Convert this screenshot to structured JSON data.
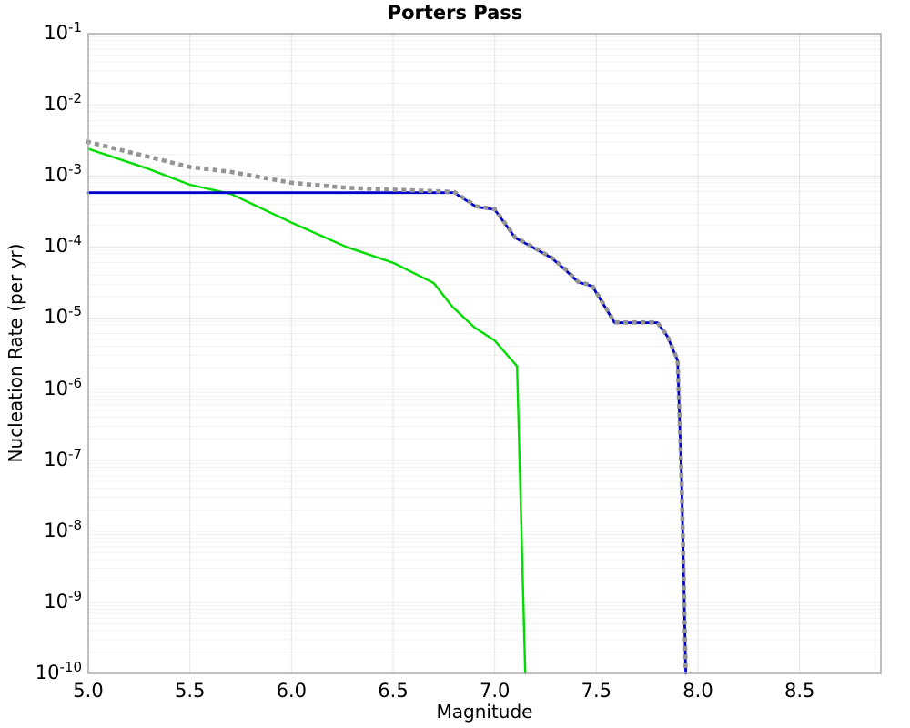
{
  "title": "Porters Pass",
  "x_axis": {
    "label": "Magnitude",
    "tick_labels": [
      "5.0",
      "5.5",
      "6.0",
      "6.5",
      "7.0",
      "7.5",
      "8.0",
      "8.5"
    ],
    "tick_values": [
      5.0,
      5.5,
      6.0,
      6.5,
      7.0,
      7.5,
      8.0,
      8.5
    ]
  },
  "y_axis": {
    "label": "Nucleation Rate (per yr)",
    "tick_base": "10",
    "tick_exponents": [
      "-1",
      "-2",
      "-3",
      "-4",
      "-5",
      "-6",
      "-7",
      "-8",
      "-9",
      "-10"
    ]
  },
  "chart_data": {
    "type": "line",
    "title": "Porters Pass",
    "xlabel": "Magnitude",
    "ylabel": "Nucleation Rate (per yr)",
    "xlim": [
      5.0,
      8.9
    ],
    "ylim": [
      1e-10,
      0.1
    ],
    "y_scale": "log",
    "grid": true,
    "legend_position": "none",
    "frame_color": "#ababab",
    "grid_major_color": "#e4e4e4",
    "grid_minor_color": "#f1f1f1",
    "series": [
      {
        "name": "green-solid-curve",
        "color": "#00dc00",
        "style": "solid",
        "width": 2.4,
        "points": [
          [
            5.0,
            0.0024
          ],
          [
            5.28,
            0.0013
          ],
          [
            5.5,
            0.00075
          ],
          [
            5.7,
            0.00056
          ],
          [
            6.0,
            0.00022
          ],
          [
            6.27,
            0.0001
          ],
          [
            6.5,
            6e-05
          ],
          [
            6.7,
            3.1e-05
          ],
          [
            6.79,
            1.45e-05
          ],
          [
            6.9,
            7.4e-06
          ],
          [
            7.0,
            4.8e-06
          ],
          [
            7.05,
            3.3e-06
          ],
          [
            7.11,
            2.1e-06
          ],
          [
            7.15,
            1e-10
          ]
        ]
      },
      {
        "name": "blue-solid-curve",
        "color": "#0000cc",
        "style": "solid",
        "width": 2.8,
        "points": [
          [
            5.0,
            0.00058
          ],
          [
            6.8,
            0.00058
          ],
          [
            6.85,
            0.00047
          ],
          [
            6.91,
            0.000365
          ],
          [
            7.0,
            0.000335
          ],
          [
            7.1,
            0.000135
          ],
          [
            7.17,
            0.000105
          ],
          [
            7.28,
            7e-05
          ],
          [
            7.36,
            4.4e-05
          ],
          [
            7.41,
            3.2e-05
          ],
          [
            7.48,
            2.8e-05
          ],
          [
            7.59,
            8.6e-06
          ],
          [
            7.8,
            8.6e-06
          ],
          [
            7.85,
            5.5e-06
          ],
          [
            7.9,
            2.5e-06
          ],
          [
            7.92,
            5e-08
          ],
          [
            7.94,
            1e-10
          ]
        ]
      },
      {
        "name": "gray-dotted-total-curve",
        "color": "#949494",
        "style": "dotted",
        "width": 4.6,
        "points": [
          [
            5.0,
            0.003
          ],
          [
            5.28,
            0.0019
          ],
          [
            5.5,
            0.00133
          ],
          [
            5.7,
            0.00114
          ],
          [
            6.0,
            0.0008
          ],
          [
            6.27,
            0.00068
          ],
          [
            6.5,
            0.00064
          ],
          [
            6.7,
            0.00061
          ],
          [
            6.8,
            0.000595
          ],
          [
            6.85,
            0.00048
          ],
          [
            6.91,
            0.000372
          ],
          [
            7.0,
            0.00034
          ],
          [
            7.1,
            0.000137
          ],
          [
            7.17,
            0.000106
          ],
          [
            7.28,
            7.1e-05
          ],
          [
            7.36,
            4.5e-05
          ],
          [
            7.41,
            3.25e-05
          ],
          [
            7.48,
            2.85e-05
          ],
          [
            7.59,
            8.7e-06
          ],
          [
            7.8,
            8.7e-06
          ],
          [
            7.85,
            5.6e-06
          ],
          [
            7.9,
            2.55e-06
          ],
          [
            7.92,
            5e-08
          ],
          [
            7.94,
            1e-10
          ]
        ]
      }
    ]
  }
}
